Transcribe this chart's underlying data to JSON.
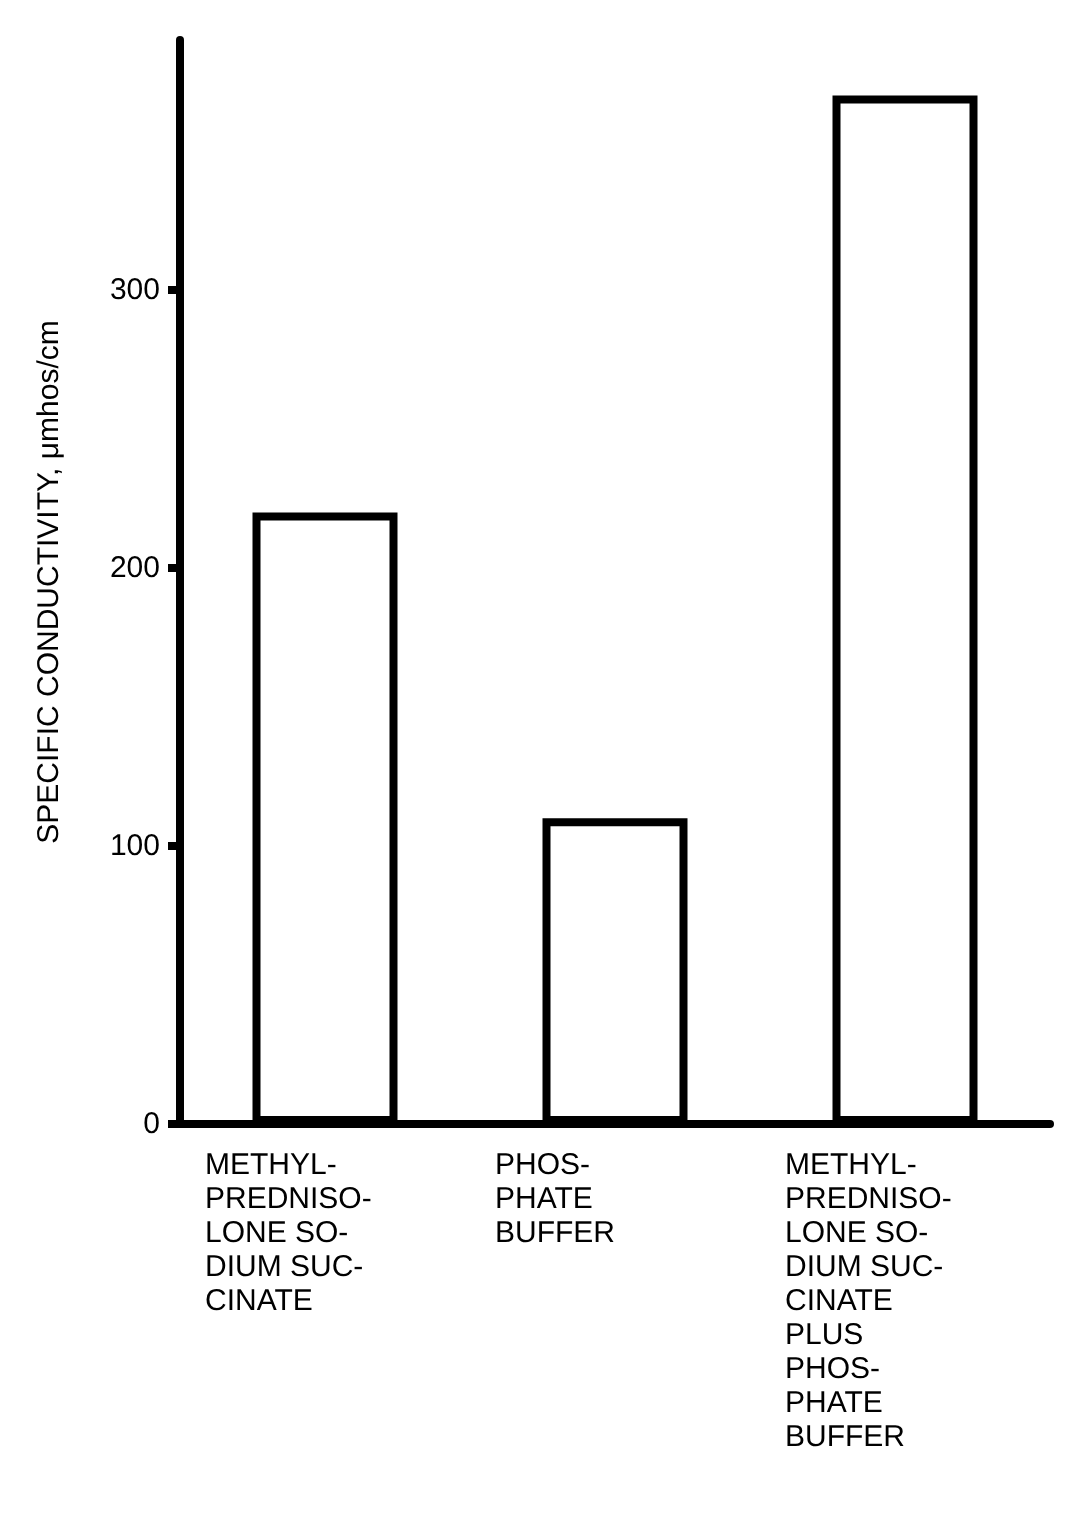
{
  "chart_data": {
    "type": "bar",
    "ylabel": "SPECIFIC CONDUCTIVITY, μmhos/cm",
    "categories": [
      "METHYL-\nPREDNISO-\nLONE SO-\nDIUM SUC-\nCINATE",
      "PHOS-\nPHATE\nBUFFER",
      "METHYL-\nPREDNISO-\nLONE SO-\nDIUM SUC-\nCINATE\nPLUS\nPHOS-\nPHATE\nBUFFER"
    ],
    "values": [
      220,
      110,
      370
    ],
    "color": "#ffffff",
    "ylim": [
      0,
      390
    ],
    "yticks": [
      0,
      100,
      200,
      300
    ],
    "grid": false
  }
}
